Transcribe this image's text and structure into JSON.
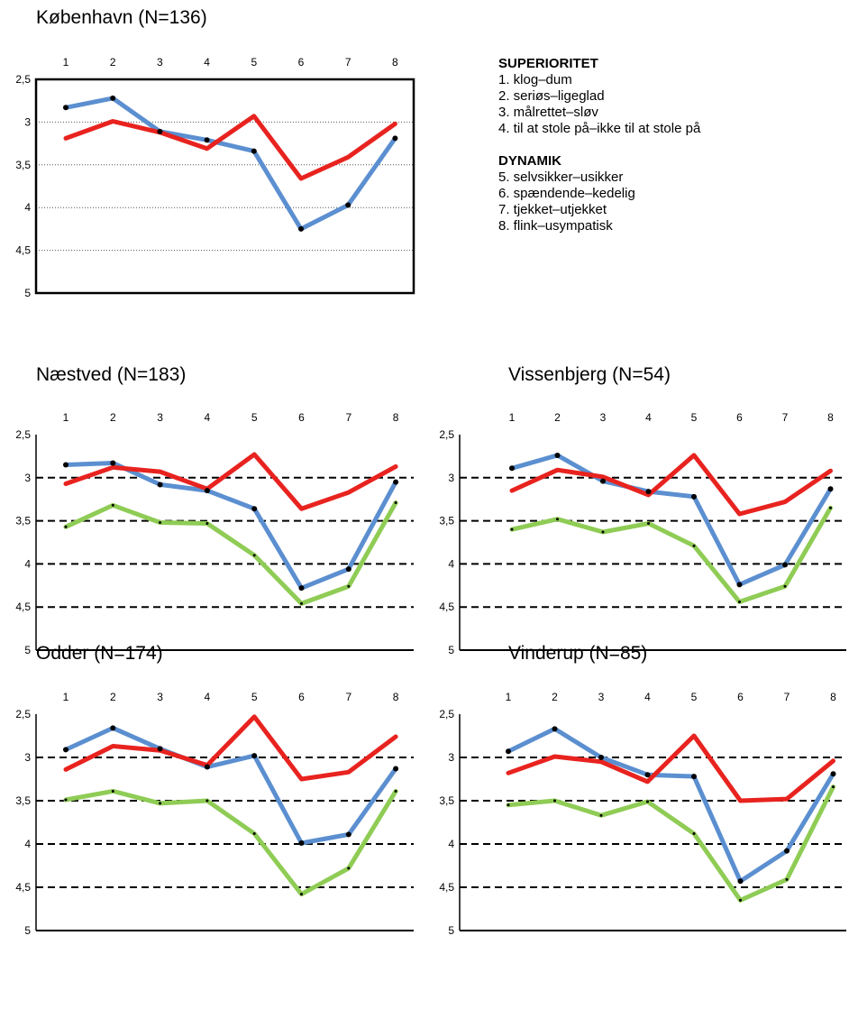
{
  "legend": {
    "groups": [
      {
        "heading": "SUPERIORITET",
        "items": [
          "1. klog–dum",
          "2. seriøs–ligeglad",
          "3. målrettet–sløv",
          "4. til at stole på–ikke til at stole på"
        ]
      },
      {
        "heading": "DYNAMIK",
        "items": [
          "5. selvsikker–usikker",
          "6. spændende–kedelig",
          "7. tjekket–utjekket",
          "8. flink–usympatisk"
        ]
      }
    ]
  },
  "colors": {
    "blue": "#5b8fd0",
    "red": "#e8231f",
    "green": "#8fcc55",
    "marker": "#000000"
  },
  "chart_data": [
    {
      "type": "line",
      "title": "København (N=136)",
      "categories": [
        "1",
        "2",
        "3",
        "4",
        "5",
        "6",
        "7",
        "8"
      ],
      "ylim": [
        5,
        2.5
      ],
      "y_inverted": true,
      "y_ticks": [
        "2,5",
        "3",
        "3,5",
        "4",
        "4,5",
        "5"
      ],
      "grid": "dotted",
      "frame": "thick",
      "series": [
        {
          "color": "blue",
          "values": [
            2.83,
            2.72,
            3.11,
            3.21,
            3.34,
            4.25,
            3.97,
            3.19
          ]
        },
        {
          "color": "red",
          "values": [
            3.19,
            2.99,
            3.12,
            3.31,
            2.93,
            3.66,
            3.41,
            3.02
          ]
        }
      ]
    },
    {
      "type": "line",
      "title": "Næstved (N=183)",
      "categories": [
        "1",
        "2",
        "3",
        "4",
        "5",
        "6",
        "7",
        "8"
      ],
      "ylim": [
        5,
        2.5
      ],
      "y_inverted": true,
      "y_ticks": [
        "2,5",
        "3",
        "3,5",
        "4",
        "4,5",
        "5"
      ],
      "grid": "dashed",
      "frame": "thin",
      "series": [
        {
          "color": "blue",
          "values": [
            2.85,
            2.83,
            3.08,
            3.15,
            3.36,
            4.28,
            4.06,
            3.05
          ]
        },
        {
          "color": "red",
          "values": [
            3.07,
            2.88,
            2.93,
            3.13,
            2.73,
            3.36,
            3.17,
            2.87
          ]
        },
        {
          "color": "green",
          "values": [
            3.57,
            3.32,
            3.52,
            3.53,
            3.9,
            4.46,
            4.26,
            3.29
          ]
        }
      ]
    },
    {
      "type": "line",
      "title": "Vissenbjerg (N=54)",
      "categories": [
        "1",
        "2",
        "3",
        "4",
        "5",
        "6",
        "7",
        "8"
      ],
      "ylim": [
        5,
        2.5
      ],
      "y_inverted": true,
      "y_ticks": [
        "2,5",
        "3",
        "3,5",
        "4",
        "4,5",
        "5"
      ],
      "grid": "dashed",
      "frame": "thin",
      "series": [
        {
          "color": "blue",
          "values": [
            2.89,
            2.74,
            3.04,
            3.16,
            3.22,
            4.24,
            4.01,
            3.13
          ]
        },
        {
          "color": "red",
          "values": [
            3.15,
            2.91,
            2.99,
            3.2,
            2.74,
            3.42,
            3.28,
            2.92
          ]
        },
        {
          "color": "green",
          "values": [
            3.6,
            3.48,
            3.63,
            3.53,
            3.79,
            4.44,
            4.26,
            3.35
          ]
        }
      ]
    },
    {
      "type": "line",
      "title": "Odder (N=174)",
      "categories": [
        "1",
        "2",
        "3",
        "4",
        "5",
        "6",
        "7",
        "8"
      ],
      "ylim": [
        5,
        2.5
      ],
      "y_inverted": true,
      "y_ticks": [
        "2,5",
        "3",
        "3,5",
        "4",
        "4,5",
        "5"
      ],
      "grid": "dashed",
      "frame": "thin",
      "series": [
        {
          "color": "blue",
          "values": [
            2.91,
            2.66,
            2.9,
            3.11,
            2.98,
            3.99,
            3.89,
            3.13
          ]
        },
        {
          "color": "red",
          "values": [
            3.14,
            2.87,
            2.92,
            3.09,
            2.53,
            3.25,
            3.17,
            2.76
          ]
        },
        {
          "color": "green",
          "values": [
            3.49,
            3.39,
            3.53,
            3.5,
            3.88,
            4.58,
            4.28,
            3.39
          ]
        }
      ]
    },
    {
      "type": "line",
      "title": "Vinderup (N=85)",
      "categories": [
        "1",
        "2",
        "3",
        "4",
        "5",
        "6",
        "7",
        "8"
      ],
      "ylim": [
        5,
        2.5
      ],
      "y_inverted": true,
      "y_ticks": [
        "2,5",
        "3",
        "3,5",
        "4",
        "4,5",
        "5"
      ],
      "grid": "dashed",
      "frame": "thin",
      "series": [
        {
          "color": "blue",
          "values": [
            2.93,
            2.67,
            3.0,
            3.2,
            3.22,
            4.43,
            4.08,
            3.19
          ]
        },
        {
          "color": "red",
          "values": [
            3.18,
            2.99,
            3.05,
            3.28,
            2.75,
            3.5,
            3.48,
            3.04
          ]
        },
        {
          "color": "green",
          "values": [
            3.55,
            3.5,
            3.67,
            3.51,
            3.88,
            4.65,
            4.41,
            3.34
          ]
        }
      ]
    }
  ]
}
